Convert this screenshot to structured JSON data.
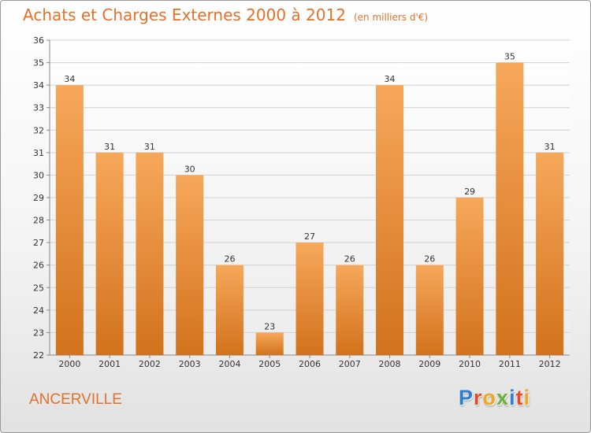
{
  "chart_data": {
    "type": "bar",
    "title": "Achats et Charges Externes 2000 à 2012",
    "subtitle": "(en milliers d'€)",
    "xlabel": "",
    "ylabel": "",
    "categories": [
      "2000",
      "2001",
      "2002",
      "2003",
      "2004",
      "2005",
      "2006",
      "2007",
      "2008",
      "2009",
      "2010",
      "2011",
      "2012"
    ],
    "values": [
      34,
      31,
      31,
      30,
      26,
      23,
      27,
      26,
      34,
      26,
      29,
      35,
      31
    ],
    "ylim": [
      22,
      36
    ],
    "yticks": [
      22,
      23,
      24,
      25,
      26,
      27,
      28,
      29,
      30,
      31,
      32,
      33,
      34,
      35,
      36
    ],
    "grid": true,
    "data_labels": true,
    "bar_color_top": "#f6a85a",
    "bar_color_bottom": "#d2721c",
    "text_color": "#e0722b"
  },
  "footer": {
    "location": "ANCERVILLE",
    "logo": {
      "text": "Proxiti",
      "letters": [
        {
          "ch": "P",
          "color": "#2f7fd0"
        },
        {
          "ch": "r",
          "color": "#e34a2a"
        },
        {
          "ch": "o",
          "color": "#f2a61f"
        },
        {
          "ch": "x",
          "color": "#6ab23b"
        },
        {
          "ch": "i",
          "color": "#2f7fd0"
        },
        {
          "ch": "t",
          "color": "#e34a2a"
        },
        {
          "ch": "i",
          "color": "#f2a61f"
        }
      ]
    }
  }
}
